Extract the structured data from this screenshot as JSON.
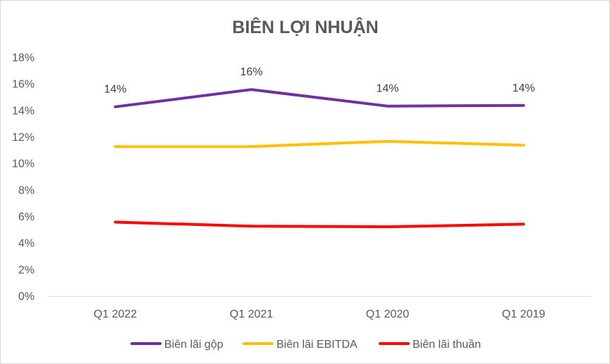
{
  "chart_data": {
    "type": "line",
    "title": "BIÊN LỢI NHUẬN",
    "categories": [
      "Q1 2022",
      "Q1 2021",
      "Q1 2020",
      "Q1 2019"
    ],
    "series": [
      {
        "name": "Biên lãi gộp",
        "color": "#7030A0",
        "values": [
          14.3,
          15.6,
          14.35,
          14.4
        ],
        "data_labels": [
          "14%",
          "16%",
          "14%",
          "14%"
        ]
      },
      {
        "name": "Biên lãi EBITDA",
        "color": "#FFC000",
        "values": [
          11.3,
          11.3,
          11.7,
          11.4
        ]
      },
      {
        "name": "Biên lãi thuần",
        "color": "#FF0000",
        "values": [
          5.6,
          5.3,
          5.25,
          5.45
        ]
      }
    ],
    "ylim": [
      0,
      18
    ],
    "yticks": [
      "0%",
      "2%",
      "4%",
      "6%",
      "8%",
      "10%",
      "12%",
      "14%",
      "16%",
      "18%"
    ],
    "grid": false,
    "legend_position": "bottom"
  }
}
